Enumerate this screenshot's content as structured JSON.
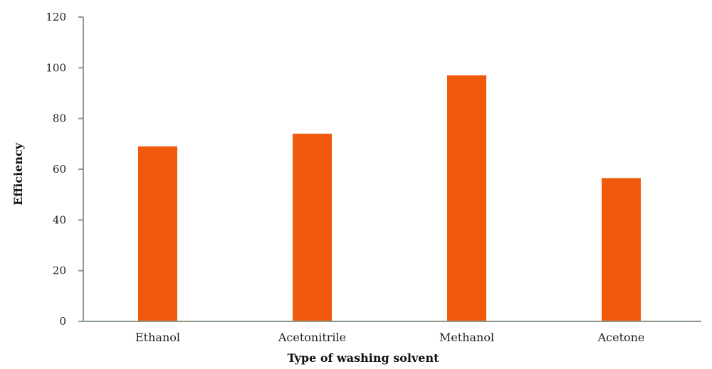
{
  "chart_data": {
    "type": "bar",
    "categories": [
      "Ethanol",
      "Acetonitrile",
      "Methanol",
      "Acetone"
    ],
    "values": [
      69,
      74,
      97,
      56.5
    ],
    "xlabel": "Type of washing solvent",
    "ylabel": "Efficiency",
    "ylim": [
      0,
      120
    ],
    "yticks": [
      "0",
      "20",
      "40",
      "60",
      "80",
      "100",
      "120"
    ],
    "grid": false,
    "legend": "none",
    "colors": {
      "bar": "#f05a0a",
      "axis": "#8a9a8a"
    }
  }
}
